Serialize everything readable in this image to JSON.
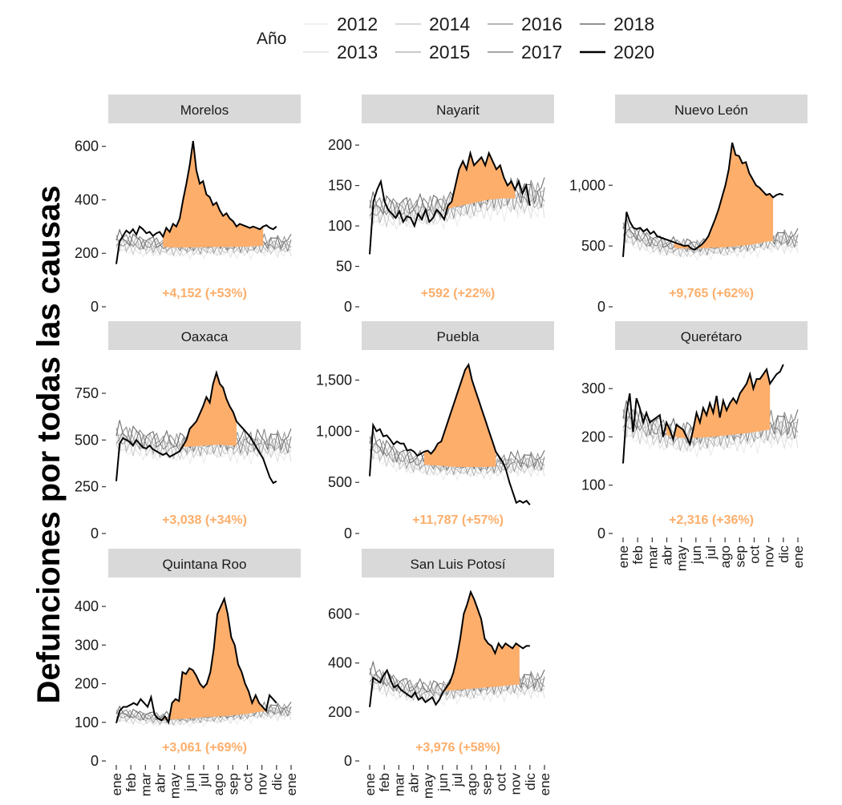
{
  "chart_data": {
    "type": "line",
    "ylabel": "Defunciones por todas las causas",
    "legend": {
      "title": "Año",
      "position": "top",
      "entries": [
        {
          "year": "2012",
          "color": "#ececec"
        },
        {
          "year": "2013",
          "color": "#e0e0e0"
        },
        {
          "year": "2014",
          "color": "#cccccc"
        },
        {
          "year": "2015",
          "color": "#b6b6b6"
        },
        {
          "year": "2016",
          "color": "#9e9e9e"
        },
        {
          "year": "2017",
          "color": "#888888"
        },
        {
          "year": "2018",
          "color": "#6e6e6e"
        },
        {
          "year": "2020",
          "color": "#000000"
        }
      ]
    },
    "months": [
      "ene",
      "feb",
      "mar",
      "abr",
      "may",
      "jun",
      "jul",
      "ago",
      "sep",
      "oct",
      "nov",
      "dic",
      "ene"
    ],
    "excess_fill_color": "#fdae6b",
    "excess_label_color": "#fdae6b",
    "panels": [
      {
        "state": "Morelos",
        "ylim": [
          0,
          650
        ],
        "yticks": [
          0,
          200,
          400,
          600
        ],
        "ytick_labels": [
          "0",
          "200",
          "400",
          "600"
        ],
        "excess_label": "+4,152 (+53%)",
        "baseline": [
          240,
          234,
          228,
          224,
          222,
          222,
          223,
          224,
          224,
          225,
          228
        ],
        "covid_start": 3,
        "covid_end": 10.2,
        "series_2020": [
          160,
          245,
          265,
          285,
          275,
          290,
          270,
          300,
          290,
          275,
          280,
          265,
          275,
          280,
          262,
          295,
          280,
          310,
          300,
          330,
          400,
          460,
          530,
          620,
          510,
          460,
          470,
          420,
          410,
          380,
          390,
          360,
          340,
          350,
          330,
          320,
          300,
          310,
          305,
          300,
          295,
          300,
          295,
          290,
          300,
          305,
          295,
          290,
          300
        ]
      },
      {
        "state": "Nayarit",
        "ylim": [
          0,
          215
        ],
        "yticks": [
          0,
          50,
          100,
          150,
          200
        ],
        "ytick_labels": [
          "0",
          "50",
          "100",
          "150",
          "200"
        ],
        "excess_label": "+592 (+22%)",
        "baseline": [
          118,
          118,
          117,
          117,
          118,
          120,
          124,
          128,
          132,
          134,
          134
        ],
        "covid_start": 5,
        "covid_end": 10.2,
        "series_2020": [
          65,
          130,
          145,
          155,
          130,
          120,
          115,
          110,
          118,
          105,
          112,
          110,
          100,
          115,
          108,
          120,
          105,
          110,
          120,
          115,
          108,
          125,
          130,
          150,
          170,
          180,
          170,
          190,
          175,
          180,
          185,
          175,
          190,
          180,
          170,
          175,
          160,
          150,
          155,
          145,
          155,
          140,
          150,
          125
        ]
      },
      {
        "state": "Nuevo León",
        "ylim": [
          0,
          1430
        ],
        "yticks": [
          0,
          500,
          1000
        ],
        "ytick_labels": [
          "0",
          "500",
          "1,000"
        ],
        "excess_label": "+9,765 (+62%)",
        "baseline": [
          620,
          560,
          520,
          490,
          480,
          480,
          485,
          490,
          500,
          515,
          540
        ],
        "covid_start": 3.5,
        "covid_end": 10.3,
        "series_2020": [
          410,
          780,
          700,
          650,
          640,
          650,
          620,
          640,
          600,
          620,
          580,
          570,
          560,
          550,
          540,
          530,
          520,
          510,
          500,
          505,
          480,
          470,
          490,
          510,
          540,
          580,
          650,
          720,
          800,
          900,
          1000,
          1130,
          1350,
          1250,
          1240,
          1180,
          1190,
          1100,
          1050,
          1000,
          980,
          950,
          920,
          930,
          900,
          920,
          930,
          920
        ]
      },
      {
        "state": "Oaxaca",
        "ylim": [
          0,
          930
        ],
        "yticks": [
          0,
          250,
          500,
          750
        ],
        "ytick_labels": [
          "0",
          "250",
          "500",
          "750"
        ],
        "excess_label": "+3,038 (+34%)",
        "baseline": [
          505,
          495,
          480,
          465,
          460,
          465,
          470,
          475,
          470,
          468,
          470
        ],
        "covid_start": 4.3,
        "covid_end": 8.4,
        "series_2020": [
          280,
          480,
          510,
          500,
          490,
          470,
          500,
          480,
          460,
          455,
          470,
          450,
          440,
          430,
          420,
          430,
          410,
          420,
          430,
          440,
          470,
          500,
          560,
          580,
          600,
          640,
          680,
          730,
          700,
          800,
          860,
          800,
          780,
          720,
          680,
          650,
          600,
          580,
          560,
          540,
          520,
          490,
          460,
          430,
          400,
          350,
          300,
          270,
          280
        ]
      },
      {
        "state": "Puebla",
        "ylim": [
          0,
          1700
        ],
        "yticks": [
          0,
          500,
          1000,
          1500
        ],
        "ytick_labels": [
          "0",
          "500",
          "1,000",
          "1,500"
        ],
        "excess_label": "+11,787 (+57%)",
        "baseline": [
          850,
          790,
          730,
          690,
          670,
          660,
          650,
          650,
          650,
          660,
          680
        ],
        "covid_start": 3.7,
        "covid_end": 8.7,
        "series_2020": [
          560,
          1060,
          1000,
          1020,
          950,
          960,
          920,
          870,
          900,
          880,
          880,
          810,
          820,
          800,
          760,
          780,
          800,
          810,
          780,
          820,
          880,
          900,
          1000,
          1100,
          1200,
          1300,
          1400,
          1500,
          1600,
          1650,
          1500,
          1400,
          1300,
          1200,
          1100,
          1000,
          900,
          800,
          750,
          700,
          620,
          500,
          400,
          300,
          320,
          300,
          320,
          280
        ]
      },
      {
        "state": "Querétaro",
        "ylim": [
          0,
          360
        ],
        "yticks": [
          0,
          100,
          200,
          300
        ],
        "ytick_labels": [
          "0",
          "100",
          "200",
          "300"
        ],
        "excess_label": "+2,316 (+36%)",
        "baseline": [
          230,
          222,
          213,
          203,
          198,
          198,
          200,
          203,
          206,
          210,
          215
        ],
        "covid_start": 2.8,
        "covid_end": 10.2,
        "series_2020": [
          145,
          250,
          290,
          210,
          280,
          260,
          230,
          250,
          230,
          235,
          240,
          245,
          200,
          230,
          215,
          195,
          225,
          220,
          215,
          200,
          185,
          215,
          250,
          230,
          260,
          245,
          270,
          250,
          285,
          240,
          275,
          255,
          270,
          280,
          270,
          290,
          300,
          310,
          330,
          300,
          320,
          320,
          330,
          340,
          310,
          320,
          330,
          335,
          350
        ]
      },
      {
        "state": "Quintana Roo",
        "ylim": [
          0,
          450
        ],
        "yticks": [
          0,
          100,
          200,
          300,
          400
        ],
        "ytick_labels": [
          "0",
          "100",
          "200",
          "300",
          "400"
        ],
        "excess_label": "+3,061 (+69%)",
        "baseline": [
          118,
          115,
          112,
          108,
          108,
          110,
          113,
          115,
          118,
          122,
          128
        ],
        "covid_start": 3,
        "covid_end": 10.3,
        "series_2020": [
          98,
          130,
          140,
          140,
          145,
          150,
          145,
          160,
          150,
          140,
          165,
          120,
          110,
          105,
          115,
          100,
          150,
          160,
          155,
          230,
          225,
          240,
          235,
          220,
          200,
          190,
          200,
          230,
          290,
          380,
          400,
          420,
          380,
          320,
          300,
          250,
          230,
          200,
          180,
          150,
          170,
          150,
          140,
          130,
          170,
          160,
          150
        ]
      },
      {
        "state": "San Luis Potosí",
        "ylim": [
          0,
          710
        ],
        "yticks": [
          0,
          200,
          400,
          600
        ],
        "ytick_labels": [
          "0",
          "200",
          "400",
          "600"
        ],
        "excess_label": "+3,976 (+58%)",
        "baseline": [
          340,
          320,
          300,
          285,
          280,
          285,
          290,
          295,
          300,
          305,
          312
        ],
        "covid_start": 4.4,
        "covid_end": 10.3,
        "series_2020": [
          220,
          340,
          330,
          320,
          350,
          370,
          330,
          300,
          310,
          290,
          280,
          270,
          260,
          280,
          250,
          260,
          240,
          250,
          260,
          230,
          250,
          280,
          300,
          320,
          360,
          420,
          500,
          600,
          640,
          690,
          660,
          620,
          580,
          500,
          480,
          470,
          440,
          480,
          460,
          480,
          470,
          460,
          480,
          470,
          460,
          470,
          470
        ]
      }
    ]
  }
}
